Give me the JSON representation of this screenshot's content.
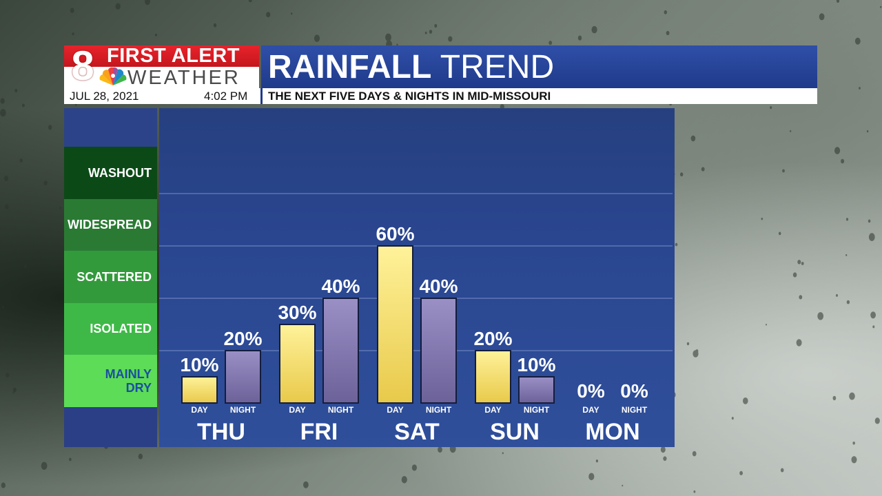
{
  "brand": {
    "logo_number": "8",
    "line1": "FIRST ALERT",
    "line2": "WEATHER"
  },
  "title": {
    "bold": "RAINFALL",
    "regular": "TREND"
  },
  "subbar": {
    "date": "JUL 28, 2021",
    "time": "4:02 PM",
    "subtitle": "THE NEXT FIVE DAYS & NIGHTS IN MID-MISSOURI"
  },
  "legend_levels": [
    {
      "label": "WASHOUT",
      "color": "#0b4a17",
      "text_color": "#ffffff"
    },
    {
      "label": "WIDESPREAD",
      "color": "#2a7a34",
      "text_color": "#ffffff"
    },
    {
      "label": "SCATTERED",
      "color": "#339a3c",
      "text_color": "#ffffff"
    },
    {
      "label": "ISOLATED",
      "color": "#3eb947",
      "text_color": "#ffffff"
    },
    {
      "label": "MAINLY DRY",
      "color": "#5ddc57",
      "text_color": "#1a4fa0"
    }
  ],
  "colors": {
    "day_bar": "#f1d966",
    "night_bar": "#8378b0",
    "panel": "#2a4690",
    "brand_red": "#d81e26",
    "title_blue": "#213d8d"
  },
  "chart_data": {
    "type": "bar",
    "categories": [
      "THU",
      "FRI",
      "SAT",
      "SUN",
      "MON"
    ],
    "sub_labels": [
      "DAY",
      "NIGHT"
    ],
    "series": [
      {
        "name": "DAY",
        "values": [
          10,
          30,
          60,
          20,
          0
        ]
      },
      {
        "name": "NIGHT",
        "values": [
          20,
          40,
          40,
          10,
          0
        ]
      }
    ],
    "value_suffix": "%",
    "ylim": [
      0,
      100
    ],
    "gridlines": [
      20,
      40,
      60,
      80
    ],
    "title": "RAINFALL TREND",
    "xlabel": "",
    "ylabel": ""
  }
}
